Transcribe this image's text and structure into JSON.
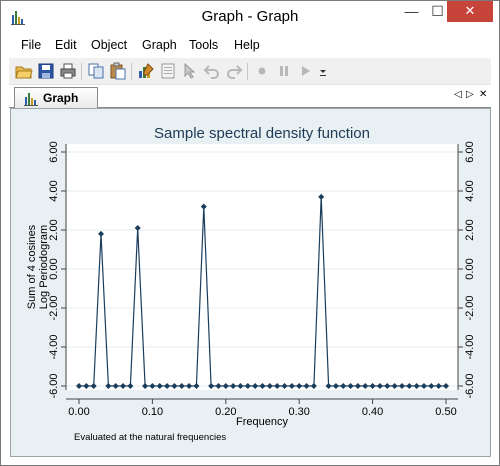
{
  "window": {
    "title": "Graph - Graph",
    "controls": {
      "minimize": "—",
      "maximize": "☐",
      "close": "✕"
    }
  },
  "menu": {
    "items": [
      "File",
      "Edit",
      "Object",
      "Graph",
      "Tools",
      "Help"
    ]
  },
  "toolbar": {
    "tools": [
      "open-icon",
      "save-icon",
      "print-icon",
      "copy-icon",
      "paste-icon",
      "graph-editor-icon",
      "properties-icon",
      "pointer-icon",
      "undo-icon",
      "redo-icon",
      "record-icon",
      "pause-icon",
      "play-icon",
      "dropdown-icon"
    ]
  },
  "tabs": {
    "active_label": "Graph",
    "nav_prev": "◁",
    "nav_next": "▷",
    "close": "✕"
  },
  "chart_data": {
    "type": "scatter",
    "title": "Sample spectral density function",
    "xlabel": "Frequency",
    "ylabel_line1": "Sum of 4 cosines",
    "ylabel_line2": "Log Periodogram",
    "note": "Evaluated at the natural frequencies",
    "xlim": [
      0,
      0.5
    ],
    "ylim": [
      -6,
      6
    ],
    "x_ticks": [
      "0.00",
      "0.10",
      "0.20",
      "0.30",
      "0.40",
      "0.50"
    ],
    "y_ticks": [
      "-6.00",
      "-4.00",
      "-2.00",
      "0.00",
      "2.00",
      "4.00",
      "6.00"
    ],
    "baseline": -6,
    "n_points": 51,
    "peaks": [
      {
        "x": 0.03,
        "y": 1.8
      },
      {
        "x": 0.08,
        "y": 2.1
      },
      {
        "x": 0.17,
        "y": 3.2
      },
      {
        "x": 0.33,
        "y": 3.7
      }
    ],
    "marker_color": "#1a3d5c",
    "grid": true,
    "right_axis_mirror": true
  }
}
